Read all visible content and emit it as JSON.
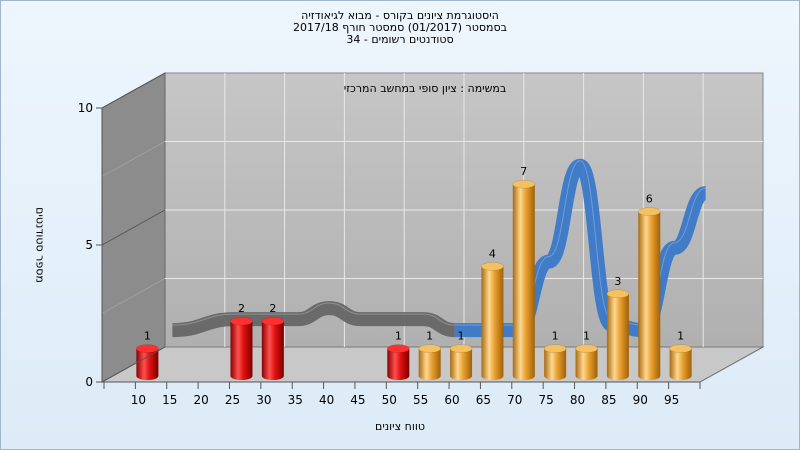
{
  "title_lines": [
    "היסטוגרמת ציונים בקורס - מבוא לגיאודזיה",
    "בסמסטר  (01/2017)  סמסטר חורף 2017/18",
    "סטודנטים רשומים - 34"
  ],
  "subtitle": "במשימה : ציון סופי במחשב המרכזי",
  "chart_data": {
    "type": "bar",
    "title": "היסטוגרמת ציונים בקורס - מבוא לגיאודזיה",
    "subtitle": "במשימה : ציון סופי במחשב המרכזי",
    "xlabel": "טווח ציונים",
    "ylabel": "מספר סטודנטים",
    "ylim": [
      0,
      10
    ],
    "yticks": [
      0,
      5,
      10
    ],
    "x_tick_labels": [
      "10",
      "15",
      "20",
      "25",
      "30",
      "35",
      "40",
      "45",
      "50",
      "55",
      "60",
      "65",
      "70",
      "75",
      "80",
      "85",
      "90",
      "95"
    ],
    "bars": [
      {
        "bin": 10,
        "value": 1,
        "label": "1",
        "color": "red"
      },
      {
        "bin": 25,
        "value": 2,
        "label": "2",
        "color": "red"
      },
      {
        "bin": 30,
        "value": 2,
        "label": "2",
        "color": "red"
      },
      {
        "bin": 50,
        "value": 1,
        "label": "1",
        "color": "red"
      },
      {
        "bin": 55,
        "value": 1,
        "label": "1",
        "color": "orange"
      },
      {
        "bin": 60,
        "value": 1,
        "label": "1",
        "color": "orange"
      },
      {
        "bin": 65,
        "value": 4,
        "label": "4",
        "color": "orange"
      },
      {
        "bin": 70,
        "value": 7,
        "label": "7",
        "color": "orange"
      },
      {
        "bin": 75,
        "value": 1,
        "label": "1",
        "color": "orange"
      },
      {
        "bin": 80,
        "value": 1,
        "label": "1",
        "color": "orange"
      },
      {
        "bin": 85,
        "value": 3,
        "label": "3",
        "color": "orange"
      },
      {
        "bin": 90,
        "value": 6,
        "label": "6",
        "color": "orange"
      },
      {
        "bin": 95,
        "value": 1,
        "label": "1",
        "color": "orange"
      }
    ],
    "trend_ribbon": {
      "x": [
        10,
        20,
        25,
        30,
        35,
        40,
        45,
        50,
        55,
        60,
        65,
        70,
        75,
        80,
        85,
        90,
        95
      ],
      "y": [
        1,
        1.4,
        1.4,
        1.4,
        1.8,
        1.4,
        1.4,
        1.4,
        1,
        1,
        1,
        3.5,
        7,
        1.2,
        1,
        4,
        6
      ]
    },
    "colors": {
      "red_bar": "#e01010",
      "orange_bar": "#e8a030",
      "ribbon_fail": "#666666",
      "ribbon_pass": "#3a78c8",
      "wall": "#8c8c8c",
      "back": "#b9b9b9"
    },
    "grid": true
  }
}
